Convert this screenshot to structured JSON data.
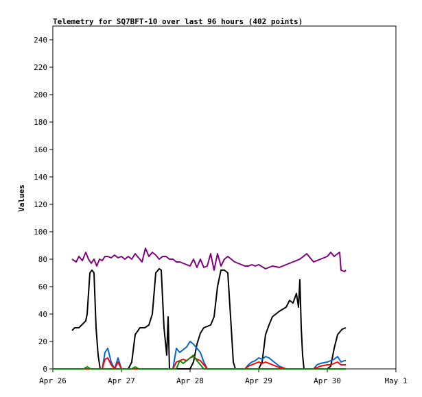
{
  "chart_data": {
    "type": "line",
    "title": "Telemetry for SQ7BFT-10 over last 96 hours (402 points)",
    "xlabel": "",
    "ylabel": "Values",
    "ylim": [
      0,
      250
    ],
    "xlim": [
      0,
      5
    ],
    "x_ticks": [
      {
        "x": 0,
        "label": "Apr 26"
      },
      {
        "x": 1,
        "label": "Apr 27"
      },
      {
        "x": 2,
        "label": "Apr 28"
      },
      {
        "x": 3,
        "label": "Apr 29"
      },
      {
        "x": 4,
        "label": "Apr 30"
      },
      {
        "x": 5,
        "label": "May 1"
      }
    ],
    "y_ticks": [
      0,
      20,
      40,
      60,
      80,
      100,
      120,
      140,
      160,
      180,
      200,
      220,
      240
    ],
    "grid": false,
    "legend": "none",
    "x_unit": "days since Apr 26",
    "series": [
      {
        "color": "#800080",
        "x": [
          0.28,
          0.34,
          0.38,
          0.43,
          0.48,
          0.52,
          0.56,
          0.6,
          0.64,
          0.68,
          0.72,
          0.76,
          0.8,
          0.85,
          0.9,
          0.95,
          1.0,
          1.05,
          1.1,
          1.15,
          1.2,
          1.25,
          1.3,
          1.35,
          1.4,
          1.45,
          1.5,
          1.55,
          1.6,
          1.65,
          1.7,
          1.75,
          1.8,
          1.85,
          1.9,
          1.95,
          2.0,
          2.05,
          2.1,
          2.15,
          2.2,
          2.25,
          2.3,
          2.35,
          2.4,
          2.45,
          2.5,
          2.55,
          2.6,
          2.65,
          2.7,
          2.75,
          2.8,
          2.85,
          2.9,
          2.95,
          3.0,
          3.1,
          3.2,
          3.3,
          3.4,
          3.5,
          3.6,
          3.7,
          3.8,
          3.9,
          4.0,
          4.05,
          4.1,
          4.15,
          4.18,
          4.2,
          4.25,
          4.27
        ],
        "y": [
          80,
          78,
          82,
          79,
          85,
          80,
          77,
          80,
          75,
          80,
          79,
          82,
          82,
          81,
          83,
          81,
          82,
          80,
          82,
          80,
          84,
          81,
          78,
          88,
          82,
          85,
          83,
          80,
          82,
          82,
          80,
          80,
          78,
          78,
          77,
          76,
          75,
          80,
          74,
          80,
          74,
          75,
          84,
          72,
          84,
          75,
          80,
          82,
          80,
          78,
          77,
          76,
          75,
          75,
          76,
          75,
          76,
          73,
          75,
          74,
          76,
          78,
          80,
          84,
          78,
          80,
          82,
          85,
          82,
          84,
          85,
          72,
          71,
          72
        ]
      },
      {
        "color": "#000000",
        "x": [
          0.28,
          0.32,
          0.38,
          0.42,
          0.48,
          0.5,
          0.54,
          0.57,
          0.6,
          0.63,
          0.66,
          0.69,
          0.7,
          0.73,
          0.76,
          0.8,
          1.0,
          1.1,
          1.15,
          1.2,
          1.27,
          1.34,
          1.4,
          1.45,
          1.5,
          1.55,
          1.58,
          1.62,
          1.66,
          1.68,
          1.7,
          1.72,
          1.74,
          1.76,
          2.0,
          2.05,
          2.1,
          2.15,
          2.2,
          2.3,
          2.35,
          2.4,
          2.45,
          2.5,
          2.55,
          2.6,
          2.63,
          2.66,
          2.69,
          2.72,
          2.75,
          3.0,
          3.05,
          3.1,
          3.15,
          3.2,
          3.3,
          3.4,
          3.45,
          3.5,
          3.55,
          3.58,
          3.6,
          3.62,
          3.64,
          3.66,
          3.68,
          3.7,
          3.75,
          3.78,
          3.8,
          3.85,
          4.0,
          4.05,
          4.1,
          4.15,
          4.2,
          4.22,
          4.27
        ],
        "y": [
          28,
          30,
          30,
          32,
          35,
          40,
          70,
          72,
          70,
          30,
          10,
          0,
          0,
          0,
          0,
          0,
          0,
          0,
          5,
          25,
          30,
          30,
          32,
          40,
          70,
          73,
          72,
          30,
          10,
          38,
          0,
          0,
          0,
          0,
          0,
          5,
          18,
          26,
          30,
          32,
          38,
          60,
          72,
          72,
          70,
          30,
          5,
          0,
          0,
          0,
          0,
          0,
          5,
          25,
          32,
          38,
          42,
          45,
          50,
          48,
          55,
          45,
          65,
          30,
          10,
          0,
          0,
          0,
          0,
          0,
          0,
          0,
          0,
          2,
          15,
          25,
          28,
          29,
          30
        ]
      },
      {
        "color": "#0066cc",
        "x": [
          0.0,
          0.5,
          0.72,
          0.76,
          0.8,
          0.85,
          0.9,
          0.95,
          1.0,
          1.05,
          1.1,
          1.5,
          1.75,
          1.8,
          1.85,
          1.9,
          1.95,
          2.0,
          2.05,
          2.1,
          2.15,
          2.2,
          2.25,
          2.3,
          2.5,
          2.8,
          2.85,
          2.9,
          2.95,
          3.0,
          3.05,
          3.1,
          3.15,
          3.2,
          3.25,
          3.3,
          3.4,
          3.5,
          3.8,
          3.85,
          3.9,
          4.0,
          4.05,
          4.1,
          4.15,
          4.2,
          4.25,
          4.27
        ],
        "y": [
          0,
          0,
          0,
          12,
          15,
          5,
          0,
          8,
          0,
          0,
          0,
          0,
          0,
          15,
          12,
          14,
          16,
          20,
          18,
          15,
          12,
          5,
          0,
          0,
          0,
          0,
          3,
          5,
          6,
          8,
          7,
          9,
          8,
          6,
          4,
          2,
          0,
          0,
          0,
          3,
          4,
          5,
          6,
          7,
          9,
          5,
          6,
          6
        ]
      },
      {
        "color": "#ff0000",
        "x": [
          0.0,
          0.5,
          0.72,
          0.76,
          0.8,
          0.85,
          0.9,
          0.95,
          1.0,
          1.5,
          1.75,
          1.8,
          1.85,
          1.9,
          1.95,
          2.0,
          2.05,
          2.1,
          2.15,
          2.2,
          2.25,
          2.3,
          2.5,
          2.8,
          2.85,
          2.9,
          2.95,
          3.0,
          3.05,
          3.1,
          3.15,
          3.2,
          3.25,
          3.3,
          3.4,
          3.5,
          3.8,
          3.85,
          3.9,
          4.0,
          4.05,
          4.1,
          4.15,
          4.2,
          4.25,
          4.27
        ],
        "y": [
          0,
          0,
          0,
          7,
          8,
          3,
          0,
          5,
          0,
          0,
          0,
          5,
          6,
          7,
          6,
          8,
          9,
          7,
          6,
          3,
          0,
          0,
          0,
          0,
          2,
          3,
          4,
          5,
          4,
          5,
          4,
          3,
          2,
          1,
          0,
          0,
          0,
          1,
          2,
          3,
          3,
          4,
          5,
          3,
          3,
          3
        ]
      },
      {
        "color": "#008800",
        "x": [
          0.0,
          0.45,
          0.5,
          0.55,
          0.8,
          1.15,
          1.2,
          1.25,
          1.8,
          1.85,
          1.9,
          2.0,
          2.05,
          2.1,
          2.2,
          3.0,
          4.0,
          4.27
        ],
        "y": [
          0,
          0,
          1.5,
          0,
          0,
          0,
          1.5,
          0,
          0,
          6,
          4,
          8,
          10,
          6,
          0,
          0,
          0,
          0
        ]
      }
    ]
  }
}
